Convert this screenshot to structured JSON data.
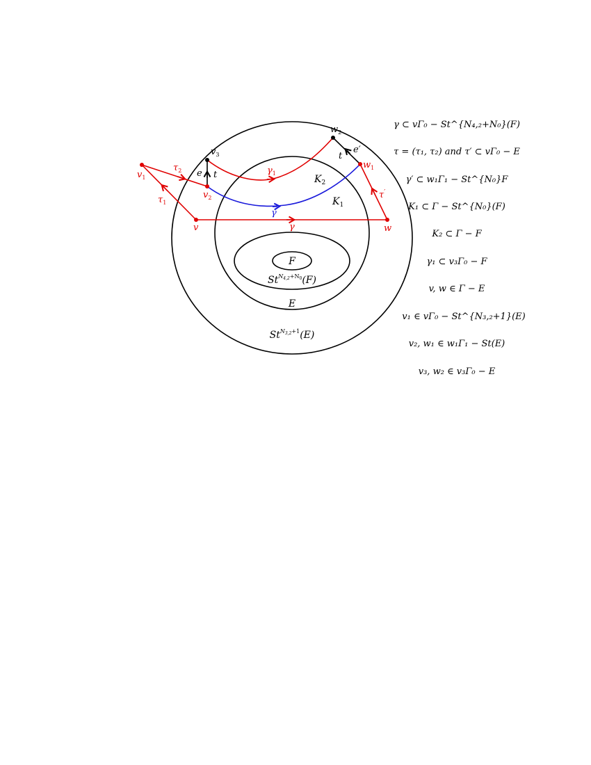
{
  "colors": {
    "outline": "#000000",
    "red_path": "#e00000",
    "blue_path": "#1a1adb"
  },
  "regions": {
    "F": "F",
    "St_F": {
      "base": "St",
      "sup": "N",
      "sup_sub": "4,2",
      "sup_tail": "+N",
      "sup_tail_sub": "0",
      "arg": "(F)"
    },
    "E": "E",
    "St_E": {
      "base": "St",
      "sup": "N",
      "sup_sub": "3,2",
      "sup_tail": "+1",
      "arg": "(E)"
    },
    "K1": {
      "base": "K",
      "sub": "1"
    },
    "K2": {
      "base": "K",
      "sub": "2"
    }
  },
  "vertices": {
    "v1": {
      "base": "v",
      "sub": "1"
    },
    "v2": {
      "base": "v",
      "sub": "2"
    },
    "v3": {
      "base": "v",
      "sub": "3"
    },
    "v": {
      "base": "v"
    },
    "w": {
      "base": "w"
    },
    "w1": {
      "base": "w",
      "sub": "1"
    },
    "w2": {
      "base": "w",
      "sub": "2"
    }
  },
  "edges": {
    "tau1": {
      "base": "τ",
      "sub": "1"
    },
    "tau2": {
      "base": "τ",
      "sub": "2"
    },
    "tau_prime": {
      "base": "τ",
      "prime": "′"
    },
    "gamma": {
      "base": "γ"
    },
    "gamma1": {
      "base": "γ",
      "sub": "1"
    },
    "gamma_prime": {
      "base": "γ",
      "prime": "′"
    },
    "e": "e",
    "e_prime": "e′",
    "t_left": "t",
    "t_right": "t"
  },
  "legend": [
    "γ ⊂ vΓ₀ − St^{N₄,₂+N₀}(F)",
    "τ = (τ₁, τ₂) and τ′ ⊂ vΓ₀ − E",
    "γ′ ⊂ w₁Γ₁ − St^{N₀}F",
    "K₁ ⊂ Γ − St^{N₀}(F)",
    "K₂ ⊂ Γ − F",
    "γ₁ ⊂ v₃Γ₀ − F",
    "v, w ∈ Γ − E",
    "v₁ ∈ vΓ₀ − St^{N₃,₂+1}(E)",
    "v₂, w₁ ∈ w₁Γ₁ − St(E)",
    "v₃, w₂ ∈ v₃Γ₀ − E"
  ]
}
